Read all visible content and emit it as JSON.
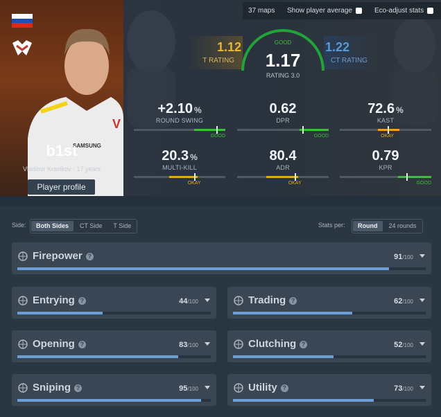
{
  "header": {
    "maps": "37 maps",
    "show_average": "Show player average",
    "eco_adjust": "Eco-adjust stats"
  },
  "player": {
    "nickname": "b1st",
    "real_name": "Vladimir Krasikov",
    "separator": "·",
    "age": "17 years",
    "profile_button": "Player profile"
  },
  "ratings": {
    "t": {
      "value": "1.12",
      "label": "T RATING"
    },
    "main": {
      "verdict": "GOOD",
      "value": "1.17",
      "label": "RATING 3.0"
    },
    "ct": {
      "value": "1.22",
      "label": "CT RATING"
    }
  },
  "stats": [
    {
      "value": "+2.10",
      "unit": "%",
      "label": "ROUND SWING",
      "verdict": "GOOD",
      "verdict_color": "#3fbf3f"
    },
    {
      "value": "0.62",
      "label": "DPR",
      "verdict": "GOOD",
      "verdict_color": "#3fbf3f"
    },
    {
      "value": "72.6",
      "unit": "%",
      "label": "KAST",
      "verdict": "OKAY",
      "verdict_color": "#e3a81c"
    },
    {
      "value": "20.3",
      "unit": "%",
      "label": "MULTI-KILL",
      "verdict": "OKAY",
      "verdict_color": "#e3a81c"
    },
    {
      "value": "80.4",
      "label": "ADR",
      "verdict": "OKAY",
      "verdict_color": "#e3a81c"
    },
    {
      "value": "0.79",
      "label": "KPR",
      "verdict": "GOOD",
      "verdict_color": "#3fbf3f"
    }
  ],
  "filters": {
    "side_label": "Side:",
    "sides": [
      "Both Sides",
      "CT Side",
      "T Side"
    ],
    "stats_per_label": "Stats per:",
    "stats_per": [
      "Round",
      "24 rounds"
    ]
  },
  "categories": [
    {
      "name": "Firepower",
      "score": 91,
      "max": 100,
      "max_label": "/100"
    },
    {
      "name": "Entrying",
      "score": 44,
      "max": 100,
      "max_label": "/100"
    },
    {
      "name": "Trading",
      "score": 62,
      "max": 100,
      "max_label": "/100"
    },
    {
      "name": "Opening",
      "score": 83,
      "max": 100,
      "max_label": "/100"
    },
    {
      "name": "Clutching",
      "score": 52,
      "max": 100,
      "max_label": "/100"
    },
    {
      "name": "Sniping",
      "score": 95,
      "max": 100,
      "max_label": "/100"
    },
    {
      "name": "Utility",
      "score": 73,
      "max": 100,
      "max_label": "/100"
    }
  ]
}
